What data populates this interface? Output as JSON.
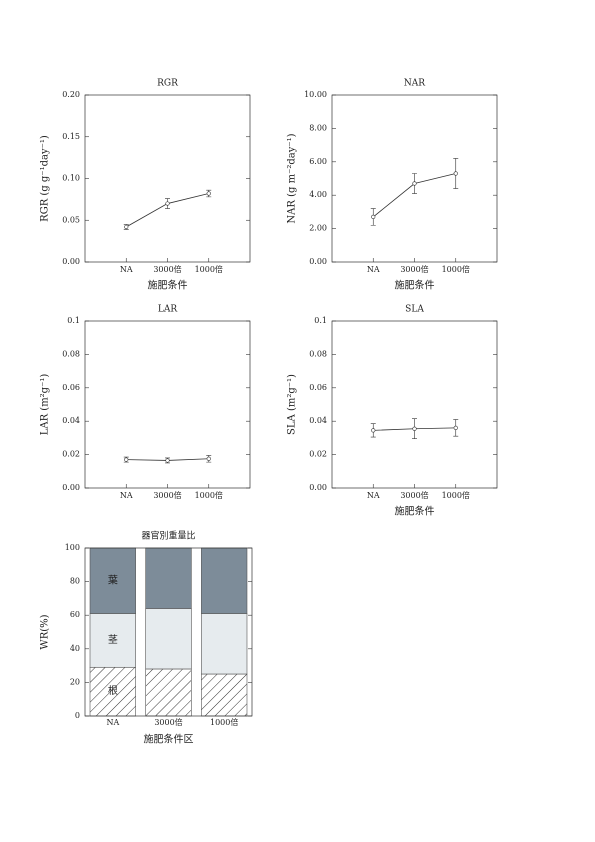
{
  "chart_data": [
    {
      "type": "line",
      "title": "RGR",
      "ylabel": "RGR (g g⁻¹day⁻¹)",
      "xlabel": "施肥条件",
      "categories": [
        "NA",
        "3000倍",
        "1000倍"
      ],
      "values": [
        0.042,
        0.07,
        0.082
      ],
      "errors": [
        0.003,
        0.006,
        0.004
      ],
      "color": "#333333",
      "ylim": [
        0,
        0.2
      ],
      "yticks": [
        {
          "value": 0,
          "label": "0.00"
        },
        0.05,
        {
          "value": 0.1,
          "label": "0.10"
        },
        0.15,
        {
          "value": 0.2,
          "label": "0.20"
        }
      ]
    },
    {
      "type": "line",
      "title": "NAR",
      "ylabel": "NAR (g m⁻²day⁻¹)",
      "xlabel": "施肥条件",
      "categories": [
        "NA",
        "3000倍",
        "1000倍"
      ],
      "values": [
        2.7,
        4.7,
        5.3
      ],
      "errors": [
        0.5,
        0.6,
        0.9
      ],
      "color": "#333333",
      "ylim": [
        0,
        10
      ],
      "yticks": [
        {
          "value": 0,
          "label": "0.00"
        },
        {
          "value": 2,
          "label": "2.00"
        },
        {
          "value": 4,
          "label": "4.00"
        },
        {
          "value": 6,
          "label": "6.00"
        },
        {
          "value": 8,
          "label": "8.00"
        },
        {
          "value": 10,
          "label": "10.00"
        }
      ]
    },
    {
      "type": "line",
      "title": "LAR",
      "ylabel": "LAR (m²g⁻¹)",
      "categories": [
        "NA",
        "3000倍",
        "1000倍"
      ],
      "values": [
        0.017,
        0.0165,
        0.0175
      ],
      "errors": [
        0.0015,
        0.0015,
        0.002
      ],
      "color": "#333333",
      "ylim": [
        0,
        0.1
      ],
      "yticks": [
        {
          "value": 0,
          "label": "0.00"
        },
        0.02,
        0.04,
        0.06,
        0.08,
        0.1
      ]
    },
    {
      "type": "line",
      "title": "SLA",
      "ylabel": "SLA (m²g⁻¹)",
      "xlabel": "施肥条件",
      "categories": [
        "NA",
        "3000倍",
        "1000倍"
      ],
      "values": [
        0.0345,
        0.0355,
        0.036
      ],
      "errors": [
        0.004,
        0.006,
        0.005
      ],
      "color": "#333333",
      "ylim": [
        0,
        0.1
      ],
      "yticks": [
        {
          "value": 0,
          "label": "0.00"
        },
        0.02,
        0.04,
        0.06,
        0.08,
        0.1
      ]
    },
    {
      "type": "bar",
      "stacked": true,
      "title": "器官別重量比",
      "ylabel": "WR(%)",
      "xlabel": "施肥条件区",
      "categories": [
        "NA",
        "3000倍",
        "1000倍"
      ],
      "series": [
        {
          "name": "根",
          "color": "#ffffff",
          "hatch": true,
          "values": [
            29,
            28,
            25
          ]
        },
        {
          "name": "茎",
          "color": "#e6ebee",
          "values": [
            32,
            36,
            36
          ]
        },
        {
          "name": "葉",
          "color": "#7d8c99",
          "values": [
            39,
            36,
            39
          ]
        }
      ],
      "ylim": [
        0,
        100
      ],
      "yticks": [
        0,
        20,
        40,
        60,
        80,
        100
      ]
    }
  ]
}
